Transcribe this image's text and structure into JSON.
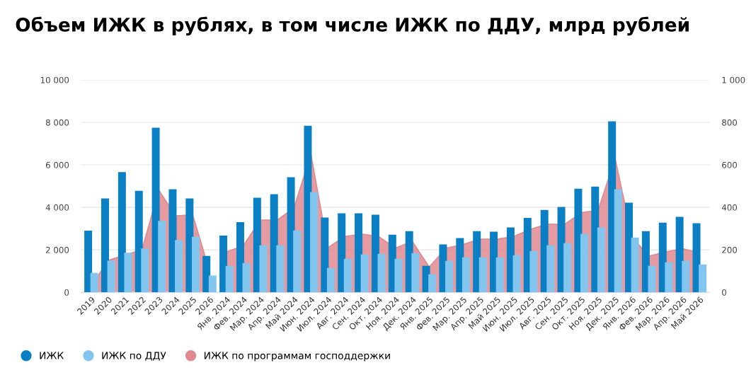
{
  "chart_data": {
    "type": "bar",
    "title": "Объем ИЖК в рублях, в том числе ИЖК по ДДУ, млрд рублей",
    "categories": [
      "2019",
      "2020",
      "2021",
      "2022",
      "2023",
      "2024",
      "2025",
      "2026",
      "Янв. 2024",
      "Фев. 2024",
      "Мар. 2024",
      "Апр. 2024",
      "Май 2024",
      "Июн. 2024",
      "Июл. 2024",
      "Авг. 2024",
      "Сен. 2024",
      "Окт. 2024",
      "Ноя. 2024",
      "Дек. 2024",
      "Янв. 2025",
      "Фев. 2025",
      "Мар. 2025",
      "Апр. 2025",
      "Май 2025",
      "Июн. 2025",
      "Июл. 2025",
      "Авг. 2025",
      "Сен. 2025",
      "Окт. 2025",
      "Ноя. 2025",
      "Дек. 2025",
      "Янв. 2026",
      "Фев. 2026",
      "Мар. 2026",
      "Апр. 2026",
      "Май 2026"
    ],
    "series": [
      {
        "name": "ИЖК по программам господдержки",
        "type": "area",
        "color": "#e08a8f",
        "values": [
          300,
          1500,
          1750,
          2000,
          4800,
          3600,
          3650,
          1000,
          null,
          null,
          null,
          null,
          null,
          null,
          null,
          null,
          null,
          null,
          null,
          null,
          null,
          null,
          null,
          null,
          null,
          null,
          null,
          null,
          null,
          null,
          null,
          null,
          null,
          null,
          null,
          null,
          null
        ]
      },
      {
        "type": "area",
        "axis": "y2",
        "color": "#e08a8f",
        "values": [
          null,
          null,
          null,
          null,
          null,
          null,
          null,
          null,
          190,
          219,
          340,
          340,
          397,
          650,
          210,
          263,
          274,
          263,
          208,
          240,
          119,
          208,
          225,
          250,
          250,
          263,
          297,
          321,
          319,
          375,
          386,
          630,
          260,
          170,
          190,
          205,
          185
        ]
      },
      {
        "name": "ИЖК",
        "color": "#0a7fc4",
        "values": [
          2900,
          4420,
          5660,
          4780,
          7750,
          4850,
          4420,
          1710,
          null,
          null,
          null,
          null,
          null,
          null,
          null,
          null,
          null,
          null,
          null,
          null,
          null,
          null,
          null,
          null,
          null,
          null,
          null,
          null,
          null,
          null,
          null,
          null,
          null,
          null,
          null,
          null,
          null
        ]
      },
      {
        "name": "ИЖК по ДДУ",
        "color": "#82c6f0",
        "values": [
          910,
          1490,
          1860,
          2060,
          3360,
          2460,
          2610,
          790,
          null,
          null,
          null,
          null,
          null,
          null,
          null,
          null,
          null,
          null,
          null,
          null,
          null,
          null,
          null,
          null,
          null,
          null,
          null,
          null,
          null,
          null,
          null,
          null,
          null,
          null,
          null,
          null,
          null
        ]
      },
      {
        "axis": "y2",
        "color": "#0a7fc4",
        "values": [
          null,
          null,
          null,
          null,
          null,
          null,
          null,
          null,
          267,
          330,
          445,
          462,
          542,
          784,
          352,
          372,
          372,
          365,
          271,
          288,
          125,
          225,
          255,
          288,
          285,
          305,
          350,
          388,
          402,
          488,
          498,
          805,
          422,
          288,
          328,
          355,
          325
        ]
      },
      {
        "axis": "y2",
        "color": "#82c6f0",
        "values": [
          null,
          null,
          null,
          null,
          null,
          null,
          null,
          null,
          125,
          138,
          221,
          221,
          291,
          472,
          115,
          158,
          178,
          181,
          158,
          185,
          85,
          148,
          165,
          165,
          165,
          175,
          195,
          221,
          231,
          275,
          305,
          485,
          258,
          125,
          141,
          148,
          131
        ]
      }
    ],
    "ylim": [
      0,
      10000
    ],
    "yticks": [
      0,
      {
        "value": 2000,
        "label": "2 000"
      },
      {
        "value": 4000,
        "label": "4 000"
      },
      {
        "value": 6000,
        "label": "6 000"
      },
      {
        "value": 8000,
        "label": "8 000"
      },
      {
        "value": 10000,
        "label": "10 000"
      }
    ],
    "y2lim": [
      0,
      1000
    ],
    "y2ticks": [
      0,
      200,
      400,
      600,
      800,
      {
        "value": 1000,
        "label": "1 000"
      }
    ],
    "grid": "y",
    "legend": "bottom left"
  }
}
